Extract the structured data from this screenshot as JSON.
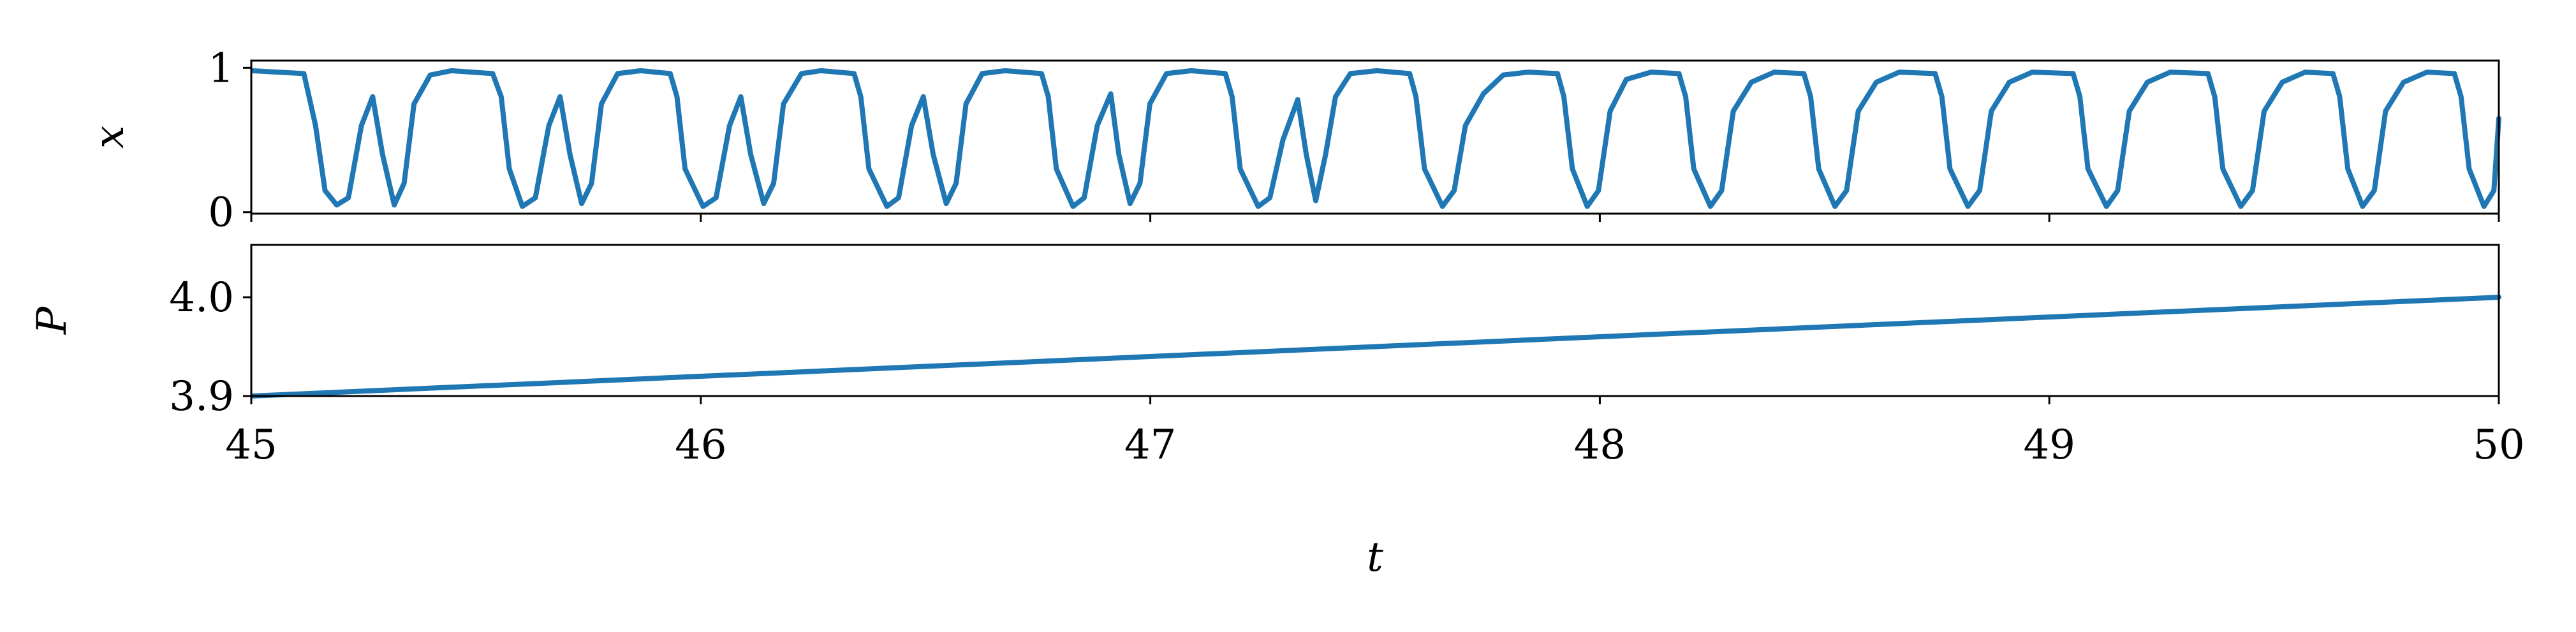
{
  "chart_data": [
    {
      "type": "line",
      "ylabel": "x",
      "x": [
        45.0,
        45.117,
        45.143,
        45.164,
        45.19,
        45.216,
        45.245,
        45.27,
        45.292,
        45.318,
        45.34,
        45.362,
        45.398,
        45.446,
        45.537,
        45.556,
        45.574,
        45.603,
        45.632,
        45.662,
        45.687,
        45.709,
        45.735,
        45.757,
        45.779,
        45.815,
        45.866,
        45.932,
        45.947,
        45.965,
        46.005,
        46.034,
        46.064,
        46.089,
        46.111,
        46.14,
        46.162,
        46.184,
        46.224,
        46.268,
        46.341,
        46.356,
        46.374,
        46.414,
        46.44,
        46.469,
        46.495,
        46.517,
        46.546,
        46.568,
        46.59,
        46.626,
        46.677,
        46.758,
        46.773,
        46.791,
        46.828,
        46.853,
        46.882,
        46.912,
        46.93,
        46.955,
        46.977,
        46.999,
        47.036,
        47.091,
        47.167,
        47.182,
        47.2,
        47.24,
        47.266,
        47.295,
        47.328,
        47.347,
        47.368,
        47.39,
        47.412,
        47.445,
        47.504,
        47.577,
        47.591,
        47.61,
        47.65,
        47.676,
        47.701,
        47.741,
        47.785,
        47.84,
        47.906,
        47.92,
        47.939,
        47.972,
        47.997,
        48.023,
        48.059,
        48.114,
        48.176,
        48.191,
        48.209,
        48.246,
        48.271,
        48.297,
        48.337,
        48.388,
        48.454,
        48.469,
        48.487,
        48.523,
        48.549,
        48.575,
        48.615,
        48.666,
        48.746,
        48.761,
        48.779,
        48.819,
        48.845,
        48.871,
        48.911,
        48.962,
        49.053,
        49.068,
        49.086,
        49.127,
        49.152,
        49.178,
        49.218,
        49.269,
        49.353,
        49.368,
        49.386,
        49.426,
        49.452,
        49.478,
        49.518,
        49.569,
        49.631,
        49.646,
        49.664,
        49.697,
        49.723,
        49.748,
        49.788,
        49.84,
        49.901,
        49.916,
        49.934,
        49.967,
        49.989,
        50.0
      ],
      "series": [
        {
          "color": "#1f77b4",
          "values": [
            0.98,
            0.96,
            0.6,
            0.15,
            0.05,
            0.1,
            0.6,
            0.8,
            0.4,
            0.05,
            0.2,
            0.75,
            0.95,
            0.98,
            0.96,
            0.8,
            0.3,
            0.04,
            0.1,
            0.6,
            0.8,
            0.4,
            0.06,
            0.2,
            0.75,
            0.96,
            0.98,
            0.96,
            0.8,
            0.3,
            0.04,
            0.1,
            0.6,
            0.8,
            0.4,
            0.06,
            0.2,
            0.75,
            0.96,
            0.98,
            0.96,
            0.8,
            0.3,
            0.04,
            0.1,
            0.6,
            0.8,
            0.4,
            0.06,
            0.2,
            0.75,
            0.96,
            0.98,
            0.96,
            0.8,
            0.3,
            0.04,
            0.1,
            0.6,
            0.82,
            0.4,
            0.06,
            0.2,
            0.75,
            0.96,
            0.98,
            0.96,
            0.8,
            0.3,
            0.04,
            0.1,
            0.5,
            0.78,
            0.4,
            0.08,
            0.4,
            0.8,
            0.96,
            0.98,
            0.96,
            0.8,
            0.3,
            0.04,
            0.15,
            0.6,
            0.82,
            0.95,
            0.97,
            0.96,
            0.8,
            0.3,
            0.04,
            0.15,
            0.7,
            0.92,
            0.97,
            0.96,
            0.8,
            0.3,
            0.04,
            0.15,
            0.7,
            0.9,
            0.97,
            0.96,
            0.8,
            0.3,
            0.04,
            0.15,
            0.7,
            0.9,
            0.97,
            0.96,
            0.8,
            0.3,
            0.04,
            0.15,
            0.7,
            0.9,
            0.97,
            0.96,
            0.8,
            0.3,
            0.04,
            0.15,
            0.7,
            0.9,
            0.97,
            0.96,
            0.8,
            0.3,
            0.04,
            0.15,
            0.7,
            0.9,
            0.97,
            0.96,
            0.8,
            0.3,
            0.04,
            0.15,
            0.7,
            0.9,
            0.97,
            0.96,
            0.8,
            0.3,
            0.04,
            0.15,
            0.65
          ]
        }
      ],
      "xlim": [
        45,
        50
      ],
      "xticks": [
        45,
        46,
        47,
        48,
        49,
        50
      ],
      "ylim": [
        -0.01,
        1.05
      ],
      "yticks": [
        0,
        1
      ]
    },
    {
      "type": "line",
      "ylabel": "P",
      "xlabel": "t",
      "x": [
        45,
        50
      ],
      "series": [
        {
          "color": "#1f77b4",
          "values": [
            3.9,
            4.0
          ]
        }
      ],
      "xlim": [
        45,
        50
      ],
      "xticks": [
        45,
        46,
        47,
        48,
        49,
        50
      ],
      "ylim": [
        3.9,
        4.053
      ],
      "yticks": [
        3.9,
        {
          "value": 4.0,
          "label": "4.0"
        }
      ]
    }
  ]
}
